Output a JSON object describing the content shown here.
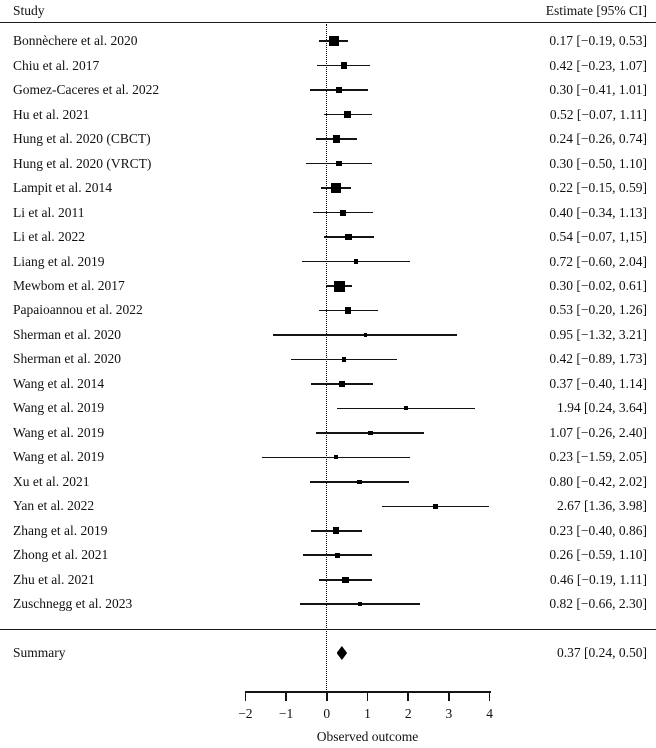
{
  "header": {
    "study_label": "Study",
    "estimate_label": "Estimate [95% CI]"
  },
  "summary": {
    "label": "Summary",
    "estimate": 0.37,
    "lo": 0.24,
    "hi": 0.5,
    "estimate_text": "0.37 [0.24, 0.50]"
  },
  "axis": {
    "label": "Observed outcome",
    "xmin": -2,
    "xmax": 4,
    "ticks": [
      -2,
      -1,
      0,
      1,
      2,
      3,
      4
    ],
    "tick_labels": [
      "−2",
      "−1",
      "0",
      "1",
      "2",
      "3",
      "4"
    ],
    "zero_reference_line": true
  },
  "colors": {
    "marker": "#000000",
    "line": "#141414",
    "text": "#111111",
    "background": "#ffffff"
  },
  "chart_data": {
    "type": "forest",
    "title": "",
    "xlabel": "Observed outcome",
    "xlim": [
      -2,
      4
    ],
    "studies": [
      {
        "label": "Bonnèchere et al. 2020",
        "estimate": 0.17,
        "lo": -0.19,
        "hi": 0.53,
        "estimate_text": "0.17 [−0.19, 0.53]"
      },
      {
        "label": "Chiu et al. 2017",
        "estimate": 0.42,
        "lo": -0.23,
        "hi": 1.07,
        "estimate_text": "0.42 [−0.23, 1.07]"
      },
      {
        "label": "Gomez-Caceres et al. 2022",
        "estimate": 0.3,
        "lo": -0.41,
        "hi": 1.01,
        "estimate_text": "0.30 [−0.41, 1.01]"
      },
      {
        "label": "Hu et al. 2021",
        "estimate": 0.52,
        "lo": -0.07,
        "hi": 1.11,
        "estimate_text": "0.52 [−0.07, 1.11]"
      },
      {
        "label": "Hung et al. 2020 (CBCT)",
        "estimate": 0.24,
        "lo": -0.26,
        "hi": 0.74,
        "estimate_text": "0.24 [−0.26, 0.74]"
      },
      {
        "label": "Hung et al. 2020 (VRCT)",
        "estimate": 0.3,
        "lo": -0.5,
        "hi": 1.1,
        "estimate_text": "0.30 [−0.50, 1.10]"
      },
      {
        "label": "Lampit et al. 2014",
        "estimate": 0.22,
        "lo": -0.15,
        "hi": 0.59,
        "estimate_text": "0.22 [−0.15, 0.59]"
      },
      {
        "label": "Li et al. 2011",
        "estimate": 0.4,
        "lo": -0.34,
        "hi": 1.13,
        "estimate_text": "0.40 [−0.34, 1.13]"
      },
      {
        "label": "Li et al. 2022",
        "estimate": 0.54,
        "lo": -0.07,
        "hi": 1.15,
        "estimate_text": "0.54 [−0.07, 1,15]"
      },
      {
        "label": "Liang et al. 2019",
        "estimate": 0.72,
        "lo": -0.6,
        "hi": 2.04,
        "estimate_text": "0.72 [−0.60, 2.04]"
      },
      {
        "label": "Mewbom et al. 2017",
        "estimate": 0.3,
        "lo": -0.02,
        "hi": 0.61,
        "estimate_text": "0.30 [−0.02, 0.61]"
      },
      {
        "label": "Papaioannou et al. 2022",
        "estimate": 0.53,
        "lo": -0.2,
        "hi": 1.26,
        "estimate_text": "0.53 [−0.20, 1.26]"
      },
      {
        "label": "Sherman et al. 2020",
        "estimate": 0.95,
        "lo": -1.32,
        "hi": 3.21,
        "estimate_text": "0.95 [−1.32, 3.21]"
      },
      {
        "label": "Sherman et al. 2020",
        "estimate": 0.42,
        "lo": -0.89,
        "hi": 1.73,
        "estimate_text": "0.42 [−0.89, 1.73]"
      },
      {
        "label": "Wang et al. 2014",
        "estimate": 0.37,
        "lo": -0.4,
        "hi": 1.14,
        "estimate_text": "0.37 [−0.40, 1.14]"
      },
      {
        "label": "Wang et al. 2019",
        "estimate": 1.94,
        "lo": 0.24,
        "hi": 3.64,
        "estimate_text": "1.94 [0.24, 3.64]"
      },
      {
        "label": "Wang et al. 2019",
        "estimate": 1.07,
        "lo": -0.26,
        "hi": 2.4,
        "estimate_text": "1.07 [−0.26, 2.40]"
      },
      {
        "label": "Wang et al. 2019",
        "estimate": 0.23,
        "lo": -1.59,
        "hi": 2.05,
        "estimate_text": "0.23 [−1.59, 2.05]"
      },
      {
        "label": "Xu et al. 2021",
        "estimate": 0.8,
        "lo": -0.42,
        "hi": 2.02,
        "estimate_text": "0.80 [−0.42, 2.02]"
      },
      {
        "label": "Yan et al. 2022",
        "estimate": 2.67,
        "lo": 1.36,
        "hi": 3.98,
        "estimate_text": "2.67 [1.36, 3.98]"
      },
      {
        "label": "Zhang et al. 2019",
        "estimate": 0.23,
        "lo": -0.4,
        "hi": 0.86,
        "estimate_text": "0.23 [−0.40, 0.86]"
      },
      {
        "label": "Zhong et al. 2021",
        "estimate": 0.26,
        "lo": -0.59,
        "hi": 1.1,
        "estimate_text": "0.26 [−0.59, 1.10]"
      },
      {
        "label": "Zhu et al. 2021",
        "estimate": 0.46,
        "lo": -0.19,
        "hi": 1.11,
        "estimate_text": "0.46 [−0.19, 1.11]"
      },
      {
        "label": "Zuschnegg et al. 2023",
        "estimate": 0.82,
        "lo": -0.66,
        "hi": 2.3,
        "estimate_text": "0.82 [−0.66, 2.30]"
      }
    ],
    "summary": {
      "label": "Summary",
      "estimate": 0.37,
      "lo": 0.24,
      "hi": 0.5
    }
  }
}
